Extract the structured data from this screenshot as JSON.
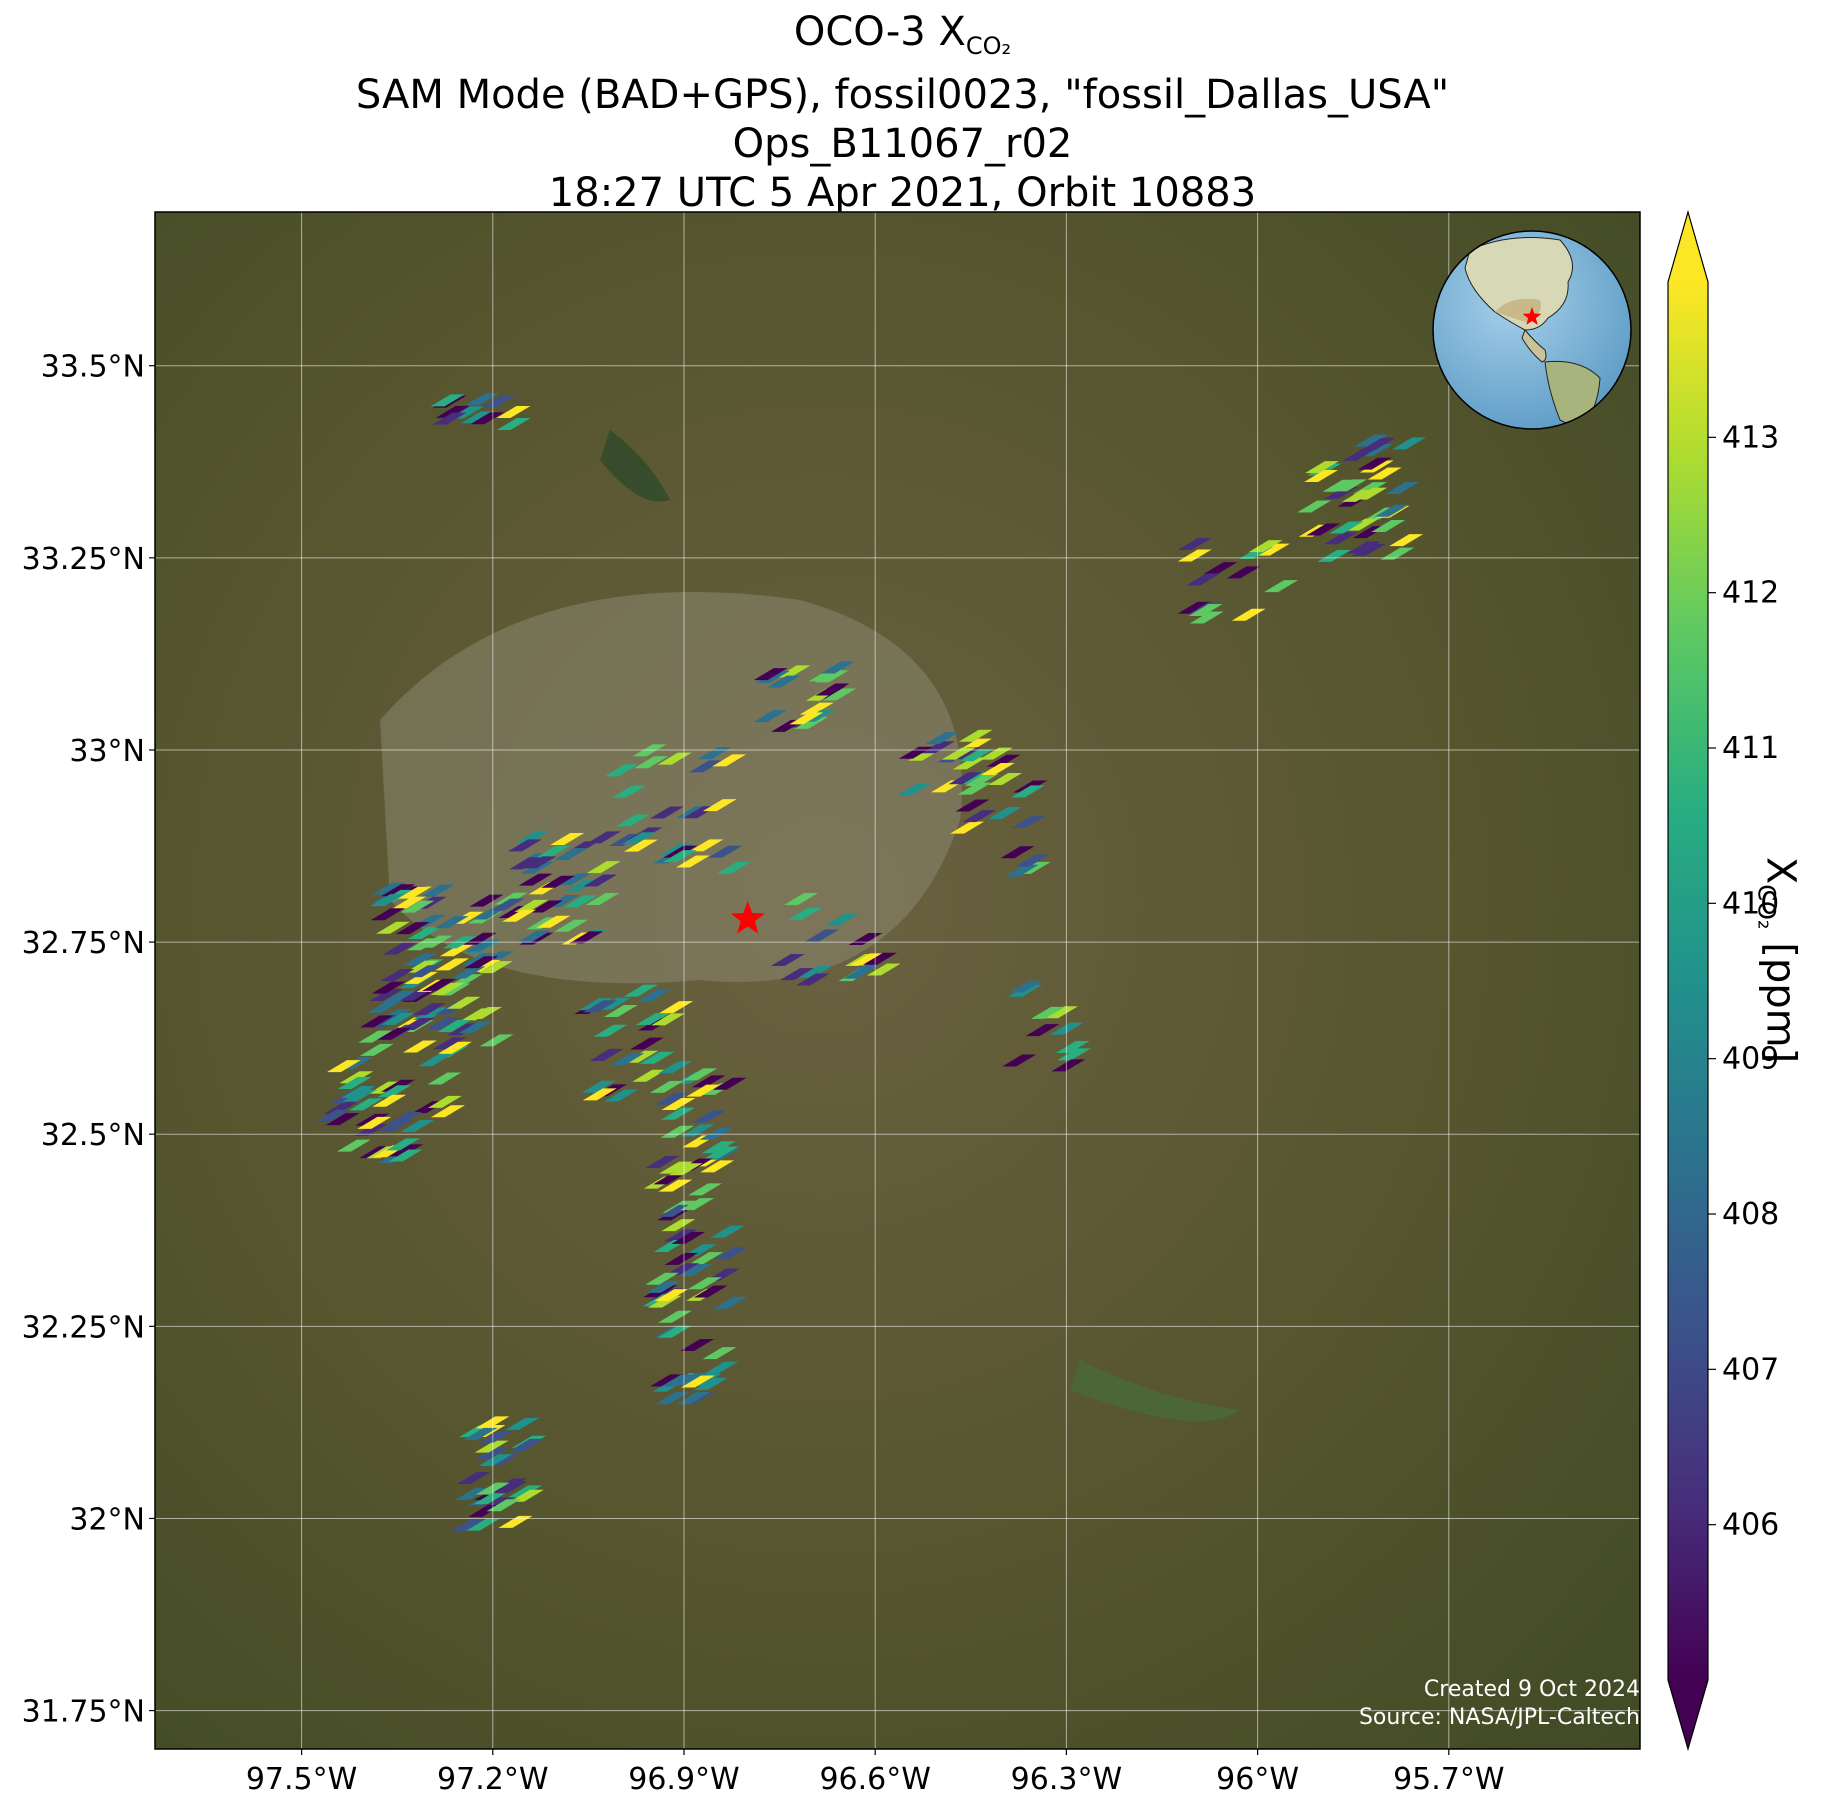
{
  "title": {
    "line1_prefix": "OCO-3 X",
    "line1_sub": "CO₂",
    "line2": "SAM Mode (BAD+GPS), fossil0023, \"fossil_Dallas_USA\"",
    "line3": "Ops_B11067_r02",
    "line4": "18:27 UTC 5 Apr 2021, Orbit 10883"
  },
  "map": {
    "extent": {
      "lon": [
        -97.73,
        -95.4
      ],
      "lat": [
        31.7,
        33.7
      ]
    },
    "lat_ticks": [
      {
        "value": 33.5,
        "label": "33.5°N"
      },
      {
        "value": 33.25,
        "label": "33.25°N"
      },
      {
        "value": 33.0,
        "label": "33°N"
      },
      {
        "value": 32.75,
        "label": "32.75°N"
      },
      {
        "value": 32.5,
        "label": "32.5°N"
      },
      {
        "value": 32.25,
        "label": "32.25°N"
      },
      {
        "value": 32.0,
        "label": "32°N"
      },
      {
        "value": 31.75,
        "label": "31.75°N"
      }
    ],
    "lon_ticks": [
      {
        "value": -97.5,
        "label": "97.5°W"
      },
      {
        "value": -97.2,
        "label": "97.2°W"
      },
      {
        "value": -96.9,
        "label": "96.9°W"
      },
      {
        "value": -96.6,
        "label": "96.6°W"
      },
      {
        "value": -96.3,
        "label": "96.3°W"
      },
      {
        "value": -96.0,
        "label": "96°W"
      },
      {
        "value": -95.7,
        "label": "95.7°W"
      }
    ],
    "gridlines": true,
    "basemap": "satellite imagery (Dallas–Fort Worth region)",
    "target_marker": {
      "lon": -96.8,
      "lat": 32.78,
      "color": "#ff0000",
      "icon": "star-icon"
    },
    "inset_globe": {
      "position": "top-right",
      "marker_color": "#ff0000",
      "icon": "globe-icon"
    }
  },
  "soundings_note": "colored footprint parallelograms of XCO2 along SAM swaths",
  "colorbar": {
    "label_prefix": "X",
    "label_sub": "CO₂",
    "label_suffix": " [ppm]",
    "min": 405,
    "max": 414,
    "ticks": [
      406,
      407,
      408,
      409,
      410,
      411,
      412,
      413
    ],
    "extend": "both",
    "colormap": "viridis"
  },
  "credit": {
    "created": "Created 9 Oct 2024",
    "source": "Source: NASA/JPL-Caltech"
  }
}
